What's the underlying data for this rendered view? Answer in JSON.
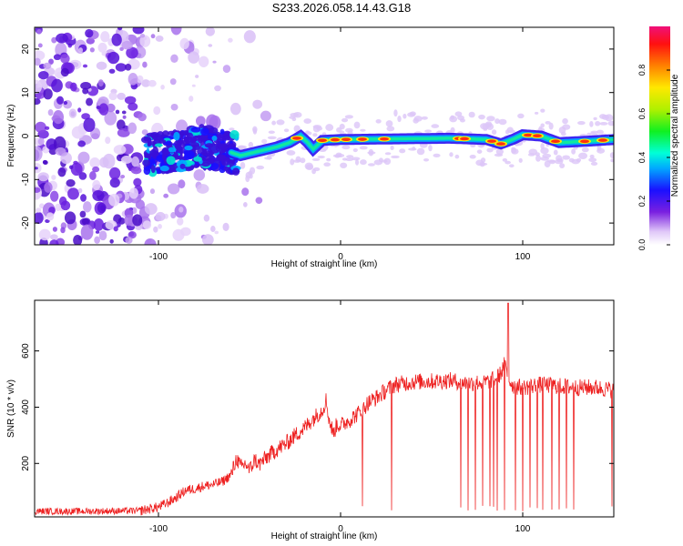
{
  "title": "S233.2026.058.14.43.G18",
  "colorbar": {
    "label": "Normalized spectral amplitude",
    "ticks": [
      "0.0",
      "0.2",
      "0.4",
      "0.6",
      "0.8"
    ]
  },
  "chart_data": [
    {
      "id": "spectrogram",
      "type": "heatmap",
      "xlabel": "Height of straight line (km)",
      "ylabel": "Frequency (Hz)",
      "xlim": [
        -168,
        150
      ],
      "ylim": [
        -25,
        25
      ],
      "xticks": [
        "-100",
        "0",
        "100"
      ],
      "yticks": [
        "-20",
        "-10",
        "0",
        "10",
        "20"
      ],
      "z_range": [
        0,
        1
      ],
      "track": {
        "x": [
          -105,
          -90,
          -75,
          -62,
          -55,
          -45,
          -35,
          -28,
          -22,
          -18,
          -15,
          -10,
          0,
          20,
          40,
          60,
          80,
          88,
          95,
          100,
          110,
          120,
          135,
          150
        ],
        "frequency": [
          -4,
          -3.5,
          -2.5,
          -3.5,
          -4.5,
          -3.5,
          -2.5,
          -1.5,
          0,
          -1.5,
          -3,
          -1,
          -0.8,
          -0.7,
          -0.6,
          -0.5,
          -0.8,
          -1.8,
          -0.7,
          0.3,
          0,
          -1.5,
          -1.2,
          -0.8
        ]
      }
    },
    {
      "id": "snr",
      "type": "line",
      "xlabel": "Height of straight line (km)",
      "ylabel": "SNR (10 * v/v)",
      "xlim": [
        -168,
        150
      ],
      "ylim": [
        10,
        780
      ],
      "xticks": [
        "-100",
        "0",
        "100"
      ],
      "yticks": [
        "200",
        "400",
        "600"
      ],
      "color": "#ee2222",
      "series": [
        {
          "x": [
            -168,
            -140,
            -110,
            -100,
            -95,
            -90,
            -85,
            -80,
            -75,
            -70,
            -65,
            -60,
            -57,
            -55,
            -52,
            -50,
            -47,
            -45,
            -40,
            -35,
            -30,
            -25,
            -20,
            -15,
            -10,
            -8,
            -6,
            -5,
            -4,
            -2,
            0,
            5,
            10,
            15,
            20,
            25,
            30,
            40,
            50,
            60,
            70,
            80,
            85,
            88,
            90,
            92,
            95,
            100,
            110,
            120,
            130,
            140,
            150
          ],
          "values": [
            30,
            30,
            32,
            45,
            60,
            80,
            105,
            110,
            120,
            125,
            135,
            160,
            220,
            185,
            200,
            175,
            215,
            195,
            225,
            250,
            270,
            300,
            325,
            360,
            390,
            425,
            345,
            330,
            305,
            340,
            335,
            355,
            380,
            415,
            435,
            460,
            480,
            490,
            492,
            495,
            485,
            490,
            500,
            520,
            555,
            500,
            475,
            470,
            480,
            475,
            470,
            470,
            460
          ]
        }
      ],
      "dropouts_x": [
        12,
        28,
        66,
        70,
        74,
        78,
        82,
        84,
        86,
        90,
        96,
        100,
        104,
        108,
        111,
        116,
        120,
        124,
        128,
        149
      ],
      "spike": {
        "x": 92,
        "value": 770
      }
    }
  ]
}
